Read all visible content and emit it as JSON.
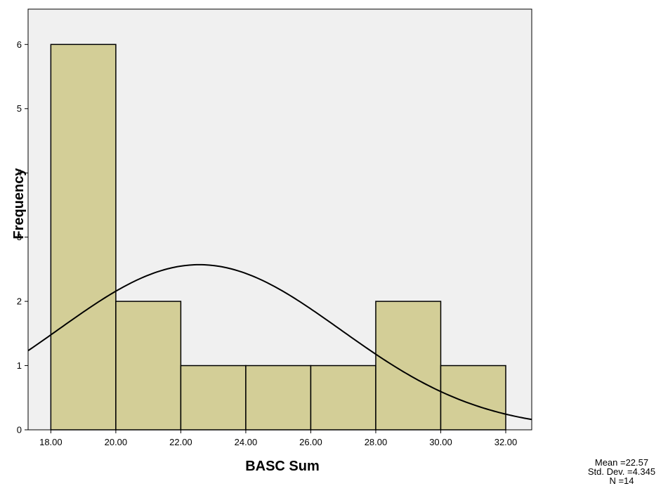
{
  "chart_data": {
    "type": "bar",
    "subtype": "histogram",
    "xlabel": "BASC Sum",
    "ylabel": "Frequency",
    "xlim": [
      17.3,
      32.8
    ],
    "ylim": [
      0,
      6.55
    ],
    "bins": [
      {
        "from": 18,
        "to": 20,
        "count": 6
      },
      {
        "from": 20,
        "to": 22,
        "count": 2
      },
      {
        "from": 22,
        "to": 24,
        "count": 1
      },
      {
        "from": 24,
        "to": 26,
        "count": 1
      },
      {
        "from": 26,
        "to": 28,
        "count": 1
      },
      {
        "from": 28,
        "to": 30,
        "count": 2
      },
      {
        "from": 30,
        "to": 32,
        "count": 1
      }
    ],
    "x_ticks": [
      "18.00",
      "20.00",
      "22.00",
      "24.00",
      "26.00",
      "28.00",
      "30.00",
      "32.00"
    ],
    "y_ticks": [
      "0",
      "1",
      "2",
      "3",
      "4",
      "5",
      "6"
    ],
    "normal_curve": {
      "mean": 22.57,
      "std": 4.345,
      "n": 14,
      "bin_width": 2
    },
    "stats": {
      "mean": "Mean =22.57",
      "std": "Std. Dev. =4.345",
      "n": "N =14"
    },
    "colors": {
      "plot_background": "#f0f0f0",
      "bar_fill": "#d3ce97",
      "bar_stroke": "#000000",
      "curve": "#000000"
    },
    "grid": false
  }
}
